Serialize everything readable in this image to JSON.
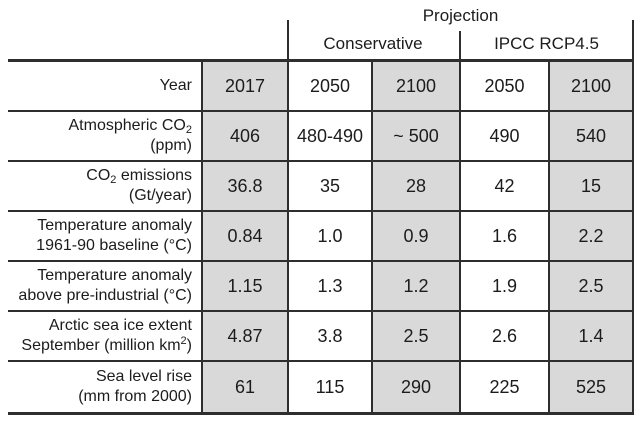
{
  "colors": {
    "shaded_cell": "#d9d9d9",
    "border": "#2e2e2e",
    "background": "#ffffff",
    "text": "#1c1c1c"
  },
  "table": {
    "header": {
      "projection_label": "Projection",
      "group1_label": "Conservative",
      "group2_label": "IPCC RCP4.5"
    },
    "rows": [
      {
        "label_line1": "Year",
        "values": [
          "2017",
          "2050",
          "2100",
          "2050",
          "2100"
        ]
      },
      {
        "label_line1_pre": "Atmospheric CO",
        "label_line1_sub": "2",
        "label_line2": "(ppm)",
        "values": [
          "406",
          "480-490",
          "~ 500",
          "490",
          "540"
        ]
      },
      {
        "label_line1_pre": "CO",
        "label_line1_sub": "2",
        "label_line1_post": " emissions",
        "label_line2": "(Gt/year)",
        "values": [
          "36.8",
          "35",
          "28",
          "42",
          "15"
        ]
      },
      {
        "label_line1": "Temperature anomaly",
        "label_line2": "1961-90 baseline (°C)",
        "values": [
          "0.84",
          "1.0",
          "0.9",
          "1.6",
          "2.2"
        ]
      },
      {
        "label_line1": "Temperature anomaly",
        "label_line2": "above pre-industrial (°C)",
        "values": [
          "1.15",
          "1.3",
          "1.2",
          "1.9",
          "2.5"
        ]
      },
      {
        "label_line1": "Arctic sea ice extent",
        "label_line2_pre": "September (million km",
        "label_line2_sup": "2",
        "label_line2_post": ")",
        "values": [
          "4.87",
          "3.8",
          "2.5",
          "2.6",
          "1.4"
        ]
      },
      {
        "label_line1": "Sea level rise",
        "label_line2": "(mm from 2000)",
        "values": [
          "61",
          "115",
          "290",
          "225",
          "525"
        ]
      }
    ]
  },
  "chart_data": {
    "type": "table",
    "title": "Projection",
    "column_groups": [
      "Conservative",
      "IPCC RCP4.5"
    ],
    "columns": [
      "2017",
      "2050 (Conservative)",
      "2100 (Conservative)",
      "2050 (IPCC RCP4.5)",
      "2100 (IPCC RCP4.5)"
    ],
    "rows": [
      {
        "label": "Atmospheric CO2 (ppm)",
        "values": [
          "406",
          "480-490",
          "~ 500",
          "490",
          "540"
        ]
      },
      {
        "label": "CO2 emissions (Gt/year)",
        "values": [
          36.8,
          35,
          28,
          42,
          15
        ]
      },
      {
        "label": "Temperature anomaly 1961-90 baseline (°C)",
        "values": [
          0.84,
          1.0,
          0.9,
          1.6,
          2.2
        ]
      },
      {
        "label": "Temperature anomaly above pre-industrial (°C)",
        "values": [
          1.15,
          1.3,
          1.2,
          1.9,
          2.5
        ]
      },
      {
        "label": "Arctic sea ice extent September (million km2)",
        "values": [
          4.87,
          3.8,
          2.5,
          2.6,
          1.4
        ]
      },
      {
        "label": "Sea level rise (mm from 2000)",
        "values": [
          61,
          115,
          290,
          225,
          525
        ]
      }
    ],
    "layout": {
      "shaded_columns": [
        "2017",
        "2100 (Conservative)",
        "2100 (IPCC RCP4.5)"
      ],
      "grid": "horizontal rules + vertical rules on value columns"
    }
  }
}
